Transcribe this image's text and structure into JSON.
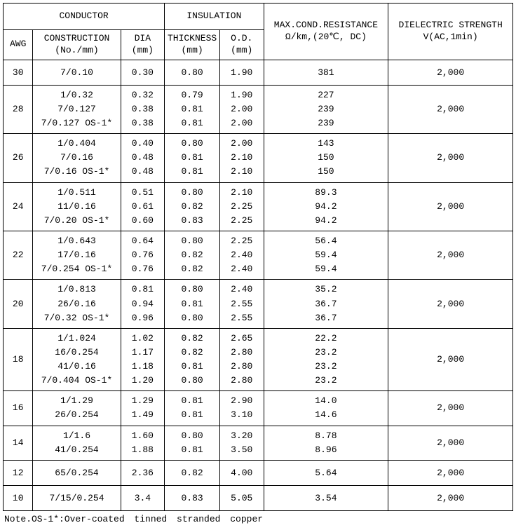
{
  "header": {
    "conductor": "CONDUCTOR",
    "insulation": "INSULATION",
    "awg": "AWG",
    "construction1": "CONSTRUCTION",
    "construction2": "(No./mm)",
    "dia1": "DIA",
    "dia2": "(mm)",
    "thickness1": "THICKNESS",
    "thickness2": "(mm)",
    "od1": "O.D.",
    "od2": "(mm)",
    "res1": "MAX.COND.RESISTANCE",
    "res2": "Ω/km,(20℃, DC)",
    "die1": "DIELECTRIC STRENGTH",
    "die2": "V(AC,1min)"
  },
  "rows": [
    {
      "awg": "30",
      "con": "7/0.10",
      "dia": "0.30",
      "thk": "0.80",
      "od": "1.90",
      "res": "381",
      "die": "2,000"
    },
    {
      "awg": "28",
      "con": "1/0.32\n7/0.127\n7/0.127 OS-1*",
      "dia": "0.32\n0.38\n0.38",
      "thk": "0.79\n0.81\n0.81",
      "od": "1.90\n2.00\n2.00",
      "res": "227\n239\n239",
      "die": "2,000"
    },
    {
      "awg": "26",
      "con": "1/0.404\n7/0.16\n7/0.16 OS-1*",
      "dia": "0.40\n0.48\n0.48",
      "thk": "0.80\n0.81\n0.81",
      "od": "2.00\n2.10\n2.10",
      "res": "143\n150\n150",
      "die": "2,000"
    },
    {
      "awg": "24",
      "con": "1/0.511\n11/0.16\n7/0.20 OS-1*",
      "dia": "0.51\n0.61\n0.60",
      "thk": "0.80\n0.82\n0.83",
      "od": "2.10\n2.25\n2.25",
      "res": "89.3\n94.2\n94.2",
      "die": "2,000"
    },
    {
      "awg": "22",
      "con": "1/0.643\n17/0.16\n7/0.254 OS-1*",
      "dia": "0.64\n0.76\n0.76",
      "thk": "0.80\n0.82\n0.82",
      "od": "2.25\n2.40\n2.40",
      "res": "56.4\n59.4\n59.4",
      "die": "2,000"
    },
    {
      "awg": "20",
      "con": "1/0.813\n26/0.16\n7/0.32 OS-1*",
      "dia": "0.81\n0.94\n0.96",
      "thk": "0.80\n0.81\n0.80",
      "od": "2.40\n2.55\n2.55",
      "res": "35.2\n36.7\n36.7",
      "die": "2,000"
    },
    {
      "awg": "18",
      "con": "1/1.024\n16/0.254\n41/0.16\n7/0.404 OS-1*",
      "dia": "1.02\n1.17\n1.18\n1.20",
      "thk": "0.82\n0.82\n0.81\n0.80",
      "od": "2.65\n2.80\n2.80\n2.80",
      "res": "22.2\n23.2\n23.2\n23.2",
      "die": "2,000"
    },
    {
      "awg": "16",
      "con": "1/1.29\n26/0.254",
      "dia": "1.29\n1.49",
      "thk": "0.81\n0.81",
      "od": "2.90\n3.10",
      "res": "14.0\n14.6",
      "die": "2,000"
    },
    {
      "awg": "14",
      "con": "1/1.6\n41/0.254",
      "dia": "1.60\n1.88",
      "thk": "0.80\n0.81",
      "od": "3.20\n3.50",
      "res": "8.78\n8.96",
      "die": "2,000"
    },
    {
      "awg": "12",
      "con": "65/0.254",
      "dia": "2.36",
      "thk": "0.82",
      "od": "4.00",
      "res": "5.64",
      "die": "2,000"
    },
    {
      "awg": "10",
      "con": "7/15/0.254",
      "dia": "3.4",
      "thk": "0.83",
      "od": "5.05",
      "res": "3.54",
      "die": "2,000"
    }
  ],
  "note": "Note.OS-1*:Over-coated tinned stranded copper"
}
